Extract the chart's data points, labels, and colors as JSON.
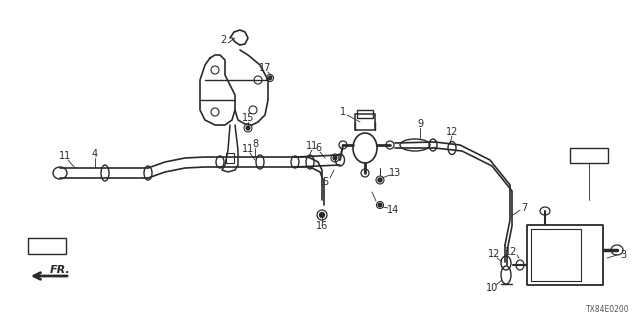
{
  "bg_color": "#ffffff",
  "diagram_color": "#2a2a2a",
  "diagram_code": "TX84E0200",
  "fig_w": 6.4,
  "fig_h": 3.2,
  "dpi": 100
}
